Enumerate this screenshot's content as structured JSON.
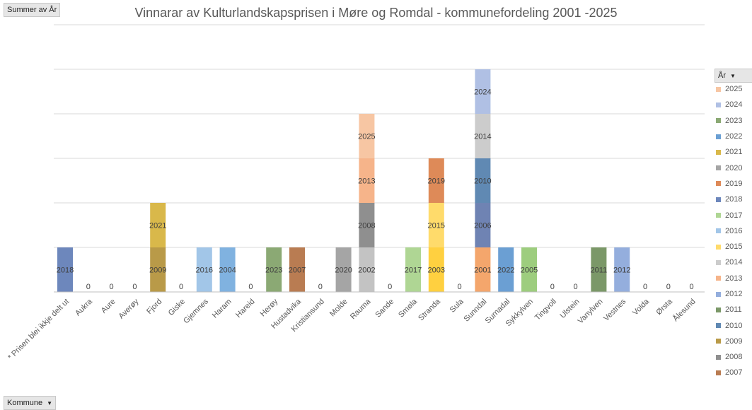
{
  "buttons": {
    "value_field": "Summer  av År",
    "legend_field": "År",
    "axis_field": "Kommune"
  },
  "chart_data": {
    "type": "bar",
    "stacked": true,
    "title": "Vinnarar av Kulturlandskapsprisen i Møre og Romdal - kommunefordeling 2001 -2025",
    "ylim": [
      0,
      6
    ],
    "grid": true,
    "legend_placement": "right",
    "categories": [
      "* Prisen blei ikkje delt ut",
      "Aukra",
      "Aure",
      "Averøy",
      "Fjord",
      "Giske",
      "Gjemnes",
      "Haram",
      "Hareid",
      "Herøy",
      "Hustadvika",
      "Kristiansund",
      "Molde",
      "Rauma",
      "Sande",
      "Smøla",
      "Stranda",
      "Sula",
      "Sunndal",
      "Surnadal",
      "Sykkylven",
      "Tingvoll",
      "Ulstein",
      "Vanylven",
      "Vestnes",
      "Volda",
      "Ørsta",
      "Ålesund"
    ],
    "stacks": [
      [
        "2018"
      ],
      [],
      [],
      [],
      [
        "2009",
        "2021"
      ],
      [],
      [
        "2016"
      ],
      [
        "2004"
      ],
      [],
      [
        "2023"
      ],
      [
        "2007"
      ],
      [],
      [
        "2020"
      ],
      [
        "2002",
        "2008",
        "2013",
        "2025"
      ],
      [],
      [
        "2017"
      ],
      [
        "2003",
        "2015",
        "2019"
      ],
      [],
      [
        "2001",
        "2006",
        "2010",
        "2014",
        "2024"
      ],
      [
        "2022"
      ],
      [
        "2005"
      ],
      [],
      [],
      [
        "2011"
      ],
      [
        "2012"
      ],
      [],
      [],
      []
    ],
    "zero_label": "0",
    "legend": [
      "2025",
      "2024",
      "2023",
      "2022",
      "2021",
      "2020",
      "2019",
      "2018",
      "2017",
      "2016",
      "2015",
      "2014",
      "2013",
      "2012",
      "2011",
      "2010",
      "2009",
      "2008",
      "2007"
    ],
    "colors": {
      "2001": "#f4a66c",
      "2002": "#c3c3c3",
      "2003": "#ffd040",
      "2004": "#80b2e0",
      "2005": "#9dcd7e",
      "2006": "#6f83b3",
      "2007": "#b97c52",
      "2008": "#8f8f8f",
      "2009": "#b99a48",
      "2010": "#6089b3",
      "2011": "#7b9868",
      "2012": "#94aedd",
      "2013": "#f6b48a",
      "2014": "#cccccc",
      "2015": "#ffdb6b",
      "2016": "#a2c6e8",
      "2017": "#afd694",
      "2018": "#6d87bc",
      "2019": "#de8a58",
      "2020": "#a5a5a5",
      "2021": "#d9b84a",
      "2022": "#6b9fd3",
      "2023": "#8ba974",
      "2024": "#b0c0e4",
      "2025": "#f7c6a3"
    }
  }
}
